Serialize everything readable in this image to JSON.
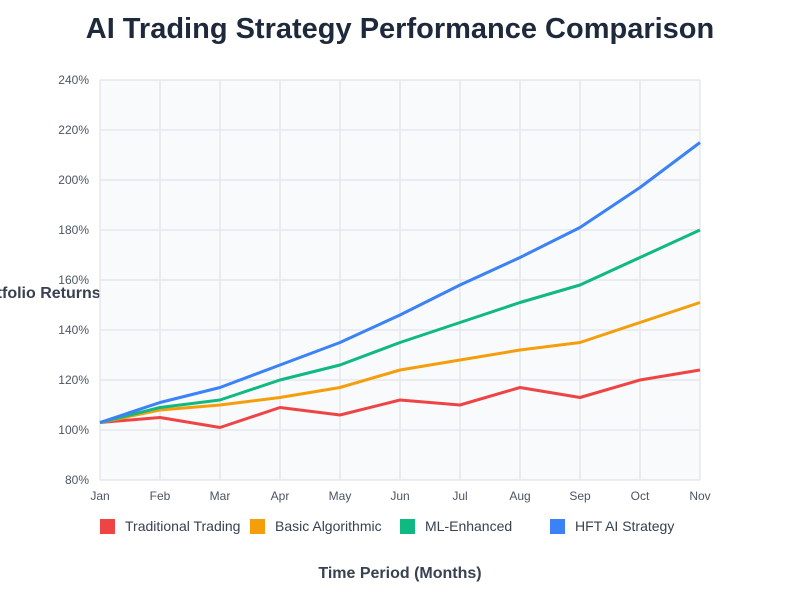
{
  "chart_data": {
    "type": "line",
    "title": "AI Trading Strategy Performance Comparison",
    "xlabel": "Time Period (Months)",
    "ylabel": "Portfolio Returns (%)",
    "categories": [
      "Jan",
      "Feb",
      "Mar",
      "Apr",
      "May",
      "Jun",
      "Jul",
      "Aug",
      "Sep",
      "Oct",
      "Nov"
    ],
    "ylim": [
      80,
      240
    ],
    "yticks": [
      "80%",
      "100%",
      "120%",
      "140%",
      "160%",
      "180%",
      "200%",
      "220%",
      "240%"
    ],
    "ytick_values": [
      80,
      100,
      120,
      140,
      160,
      180,
      200,
      220,
      240
    ],
    "grid": true,
    "legend_placement": "bottom",
    "series": [
      {
        "name": "Traditional Trading",
        "color": "#ef4444",
        "values": [
          103,
          105,
          101,
          109,
          106,
          112,
          110,
          117,
          113,
          120,
          124
        ]
      },
      {
        "name": "Basic Algorithmic",
        "color": "#f59e0b",
        "values": [
          103,
          108,
          110,
          113,
          117,
          124,
          128,
          132,
          135,
          143,
          151
        ]
      },
      {
        "name": "ML-Enhanced",
        "color": "#10b981",
        "values": [
          103,
          109,
          112,
          120,
          126,
          135,
          143,
          151,
          158,
          169,
          180
        ]
      },
      {
        "name": "HFT AI Strategy",
        "color": "#3b82f6",
        "values": [
          103,
          111,
          117,
          126,
          135,
          146,
          158,
          169,
          181,
          197,
          215
        ]
      }
    ]
  }
}
